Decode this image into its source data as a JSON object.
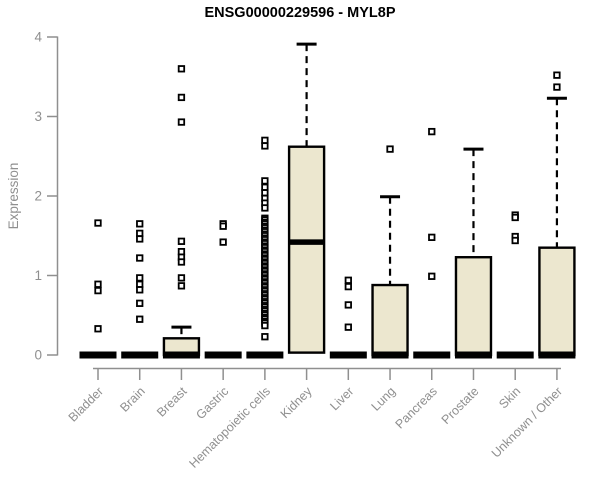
{
  "chart_data": {
    "type": "boxplot",
    "title": "ENSG00000229596 - MYL8P",
    "ylabel": "Expression",
    "xlabel": "",
    "ylim": [
      0,
      4
    ],
    "yticks": [
      0,
      1,
      2,
      3,
      4
    ],
    "grid": false,
    "legend": "none",
    "colors": {
      "box_fill": "#ece7cf",
      "box_stroke": "#000000",
      "median": "#000000",
      "outlier_stroke": "#000000",
      "axis": "#8f8f8f",
      "tick_label": "#8f8f8f",
      "title": "#000000",
      "background": "#ffffff"
    },
    "categories": [
      "Bladder",
      "Brain",
      "Breast",
      "Gastric",
      "Hematopoietic cells",
      "Kidney",
      "Liver",
      "Lung",
      "Pancreas",
      "Prostate",
      "Skin",
      "Unknown / Other"
    ],
    "series": [
      {
        "name": "Bladder",
        "q1": 0,
        "median": 0,
        "q3": 0,
        "whisker_low": 0,
        "whisker_high": 0,
        "outliers": [
          1.66,
          0.89,
          0.81,
          0.33
        ]
      },
      {
        "name": "Brain",
        "q1": 0,
        "median": 0,
        "q3": 0,
        "whisker_low": 0,
        "whisker_high": 0,
        "outliers": [
          1.65,
          1.53,
          1.46,
          1.22,
          0.97,
          0.89,
          0.82,
          0.65,
          0.45
        ]
      },
      {
        "name": "Breast",
        "q1": 0,
        "median": 0,
        "q3": 0.21,
        "whisker_low": 0,
        "whisker_high": 0.35,
        "outliers": [
          3.6,
          3.24,
          2.93,
          1.43,
          1.3,
          1.23,
          1.17,
          0.97,
          0.87
        ]
      },
      {
        "name": "Gastric",
        "q1": 0,
        "median": 0,
        "q3": 0,
        "whisker_low": 0,
        "whisker_high": 0,
        "outliers": [
          1.65,
          1.62,
          1.42
        ]
      },
      {
        "name": "Hematopoietic cells",
        "q1": 0,
        "median": 0,
        "q3": 0,
        "whisker_low": 0,
        "whisker_high": 0,
        "outliers": [
          2.7,
          2.63,
          2.19,
          2.11,
          2.04,
          1.97,
          1.91,
          1.85,
          1.72,
          1.7,
          1.67,
          1.65,
          1.62,
          1.6,
          1.57,
          1.55,
          1.52,
          1.5,
          1.47,
          1.45,
          1.42,
          1.4,
          1.37,
          1.35,
          1.32,
          1.3,
          1.27,
          1.25,
          1.22,
          1.2,
          1.17,
          1.15,
          1.12,
          1.1,
          1.07,
          1.05,
          1.02,
          1.0,
          0.97,
          0.95,
          0.92,
          0.9,
          0.87,
          0.85,
          0.82,
          0.8,
          0.77,
          0.75,
          0.72,
          0.7,
          0.67,
          0.65,
          0.62,
          0.6,
          0.57,
          0.55,
          0.52,
          0.5,
          0.47,
          0.45,
          0.42,
          0.4,
          0.37,
          0.23
        ]
      },
      {
        "name": "Kidney",
        "q1": 0.03,
        "median": 1.42,
        "q3": 2.62,
        "whisker_low": 0.03,
        "whisker_high": 3.91,
        "outliers": []
      },
      {
        "name": "Liver",
        "q1": 0,
        "median": 0,
        "q3": 0,
        "whisker_low": 0,
        "whisker_high": 0,
        "outliers": [
          0.94,
          0.86,
          0.63,
          0.35
        ]
      },
      {
        "name": "Lung",
        "q1": 0,
        "median": 0,
        "q3": 0.88,
        "whisker_low": 0,
        "whisker_high": 1.99,
        "outliers": [
          2.59
        ]
      },
      {
        "name": "Pancreas",
        "q1": 0,
        "median": 0,
        "q3": 0,
        "whisker_low": 0,
        "whisker_high": 0,
        "outliers": [
          2.81,
          1.48,
          0.99
        ]
      },
      {
        "name": "Prostate",
        "q1": 0,
        "median": 0,
        "q3": 1.23,
        "whisker_low": 0,
        "whisker_high": 2.59,
        "outliers": []
      },
      {
        "name": "Skin",
        "q1": 0,
        "median": 0,
        "q3": 0,
        "whisker_low": 0,
        "whisker_high": 0,
        "outliers": [
          1.76,
          1.73,
          1.49,
          1.44
        ]
      },
      {
        "name": "Unknown / Other",
        "q1": 0,
        "median": 0,
        "q3": 1.35,
        "whisker_low": 0,
        "whisker_high": 3.23,
        "outliers": [
          3.52,
          3.37
        ]
      }
    ]
  }
}
